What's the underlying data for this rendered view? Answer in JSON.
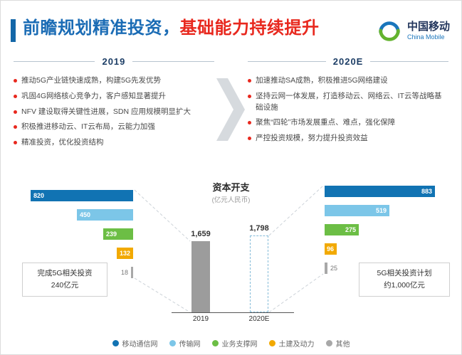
{
  "header": {
    "title_blue": "前瞻规划精准投资，",
    "title_red": "基础能力持续提升",
    "logo": {
      "name_cn": "中国移动",
      "name_en": "China Mobile"
    }
  },
  "columns": [
    {
      "year": "2019",
      "bullets": [
        "推动5G产业链快速成熟，构建5G先发优势",
        "巩固4G网络核心竞争力，客户感知显著提升",
        "NFV 建设取得关键性进展，SDN 应用规模明显扩大",
        "积极推进移动云、IT云布局，云能力加强",
        "精准投资，优化投资结构"
      ]
    },
    {
      "year": "2020E",
      "bullets": [
        "加速推动SA成熟，积极推进5G网络建设",
        "坚持云网一体发展，打造移动云、网络云、IT云等战略基础设施",
        "聚焦“四轮”市场发展重点、难点，强化保障",
        "严控投资规模，努力提升投资效益"
      ]
    }
  ],
  "chart_data": {
    "type": "bar",
    "title": "资本开支",
    "subtitle": "(亿元人民币)",
    "categories": [
      "移动通信网",
      "传输网",
      "业务支撑网",
      "土建及动力",
      "其他"
    ],
    "colors": [
      "#1173b3",
      "#7cc6e8",
      "#6cbe45",
      "#f2a900",
      "#a8a8a8"
    ],
    "series": [
      {
        "name": "2019",
        "values": [
          820,
          450,
          239,
          132,
          18
        ],
        "total": 1659,
        "total_label": "1,659",
        "style": "solid"
      },
      {
        "name": "2020E",
        "values": [
          883,
          519,
          275,
          96,
          25
        ],
        "total": 1798,
        "total_label": "1,798",
        "style": "dashed"
      }
    ],
    "xlabel": "",
    "ylabel": "亿元人民币"
  },
  "callouts": {
    "left": {
      "line1": "完成5G相关投资",
      "line2": "240亿元"
    },
    "right": {
      "line1": "5G相关投资计划",
      "line2": "约1,000亿元"
    }
  }
}
